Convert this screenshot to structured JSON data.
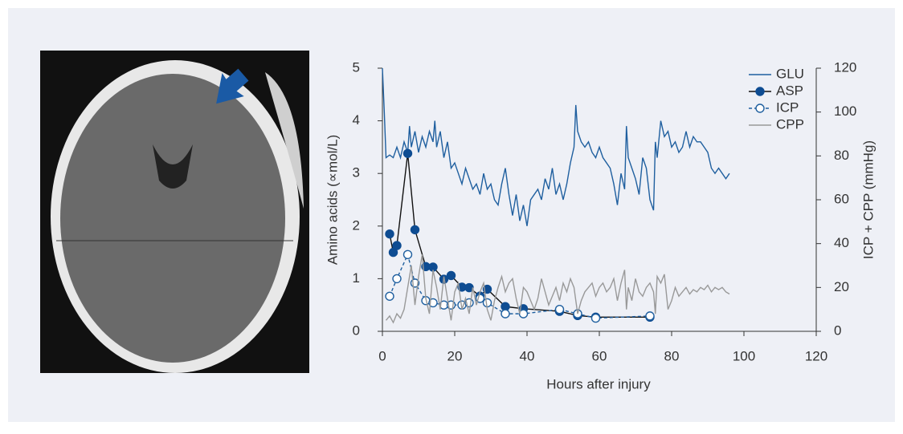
{
  "chart_data": {
    "type": "line",
    "xlabel": "Hours after injury",
    "ylabel": "Amino acids (∝mol/L)",
    "y2label": "ICP + CPP (mmHg)",
    "xlim": [
      0,
      120
    ],
    "xticks": [
      0,
      20,
      40,
      60,
      80,
      100,
      120
    ],
    "ylim": [
      0,
      5
    ],
    "yticks": [
      0,
      1,
      2,
      3,
      4,
      5
    ],
    "y2lim": [
      0,
      120
    ],
    "y2ticks": [
      0,
      20,
      40,
      60,
      80,
      100,
      120
    ],
    "legend": "upper right",
    "series": [
      {
        "name": "GLU",
        "color": "#1f5f9f",
        "marker": "none",
        "dash": false,
        "x": [
          0,
          0.5,
          1,
          2,
          3,
          4,
          5,
          6,
          7,
          7.5,
          8,
          9,
          10,
          11,
          12,
          13,
          14,
          14.5,
          15,
          16,
          17,
          18,
          19,
          20,
          21,
          22,
          23,
          24,
          25,
          26,
          27,
          28,
          29,
          30,
          31,
          32,
          33,
          34,
          35,
          36,
          37,
          38,
          39,
          40,
          41,
          42,
          43,
          44,
          45,
          46,
          47,
          48,
          49,
          50,
          51,
          52,
          53,
          53.5,
          54,
          55,
          56,
          57,
          58,
          59,
          60,
          61,
          62,
          63,
          64,
          65,
          66,
          67,
          67.5,
          68,
          69,
          70,
          71,
          72,
          73,
          74,
          75,
          75.5,
          76,
          77,
          78,
          79,
          80,
          81,
          82,
          83,
          84,
          85,
          86,
          87,
          88,
          89,
          90,
          91,
          92,
          93,
          94,
          95,
          96
        ],
        "values": [
          5.0,
          4.2,
          3.3,
          3.35,
          3.3,
          3.5,
          3.3,
          3.6,
          3.4,
          3.9,
          3.5,
          3.8,
          3.4,
          3.7,
          3.5,
          3.8,
          3.6,
          4.0,
          3.5,
          3.8,
          3.3,
          3.6,
          3.1,
          3.2,
          3.0,
          2.8,
          3.1,
          2.9,
          2.7,
          2.8,
          2.6,
          3.0,
          2.7,
          2.8,
          2.5,
          2.4,
          2.8,
          3.1,
          2.6,
          2.2,
          2.6,
          2.1,
          2.4,
          2.0,
          2.5,
          2.6,
          2.7,
          2.5,
          2.9,
          2.7,
          3.1,
          2.6,
          2.8,
          2.5,
          2.8,
          3.2,
          3.5,
          4.3,
          3.8,
          3.6,
          3.5,
          3.6,
          3.4,
          3.3,
          3.5,
          3.3,
          3.2,
          3.1,
          2.8,
          2.4,
          3.0,
          2.7,
          3.9,
          3.3,
          3.1,
          2.9,
          2.6,
          3.3,
          3.1,
          2.5,
          2.3,
          3.6,
          3.3,
          4.0,
          3.7,
          3.8,
          3.5,
          3.6,
          3.4,
          3.5,
          3.8,
          3.5,
          3.7,
          3.6,
          3.6,
          3.5,
          3.4,
          3.1,
          3.0,
          3.1,
          3.0,
          2.9,
          3.0
        ]
      },
      {
        "name": "ASP",
        "color": "#0e4c92",
        "line_color": "#111111",
        "marker": "filled",
        "dash": false,
        "x": [
          2,
          3,
          4,
          7,
          9,
          12,
          14,
          17,
          19,
          22,
          24,
          27,
          29,
          34,
          39,
          49,
          54,
          59,
          74
        ],
        "values": [
          1.85,
          1.5,
          1.63,
          3.38,
          1.93,
          1.23,
          1.22,
          0.99,
          1.06,
          0.84,
          0.83,
          0.67,
          0.8,
          0.47,
          0.43,
          0.38,
          0.3,
          0.27,
          0.27
        ]
      },
      {
        "name": "ICP",
        "color": "#1f5f9f",
        "marker": "open",
        "dash": true,
        "axis": "y2",
        "x": [
          2,
          4,
          7,
          9,
          12,
          14,
          17,
          19,
          22,
          24,
          27,
          29,
          34,
          39,
          49,
          54,
          59,
          74
        ],
        "values": [
          16,
          24,
          35,
          22,
          14,
          13,
          12,
          12,
          12,
          13,
          15,
          13,
          8,
          8,
          10,
          8,
          6,
          7
        ]
      },
      {
        "name": "CPP",
        "color": "#999999",
        "marker": "none",
        "dash": false,
        "axis": "y2",
        "x": [
          1,
          2,
          3,
          4,
          5,
          6,
          7,
          8,
          9,
          10,
          11,
          12,
          13,
          14,
          15,
          16,
          17,
          18,
          19,
          20,
          21,
          22,
          23,
          24,
          25,
          26,
          27,
          28,
          29,
          30,
          31,
          32,
          33,
          34,
          35,
          36,
          37,
          38,
          39,
          40,
          41,
          42,
          43,
          44,
          45,
          46,
          47,
          48,
          49,
          50,
          51,
          52,
          53,
          54,
          55,
          56,
          57,
          58,
          59,
          60,
          61,
          62,
          63,
          64,
          65,
          66,
          67,
          67.5,
          68,
          69,
          70,
          71,
          72,
          73,
          74,
          75,
          75.5,
          76,
          77,
          78,
          79,
          80,
          81,
          82,
          83,
          84,
          85,
          86,
          87,
          88,
          89,
          90,
          91,
          92,
          93,
          94,
          95,
          96
        ],
        "values": [
          5,
          7,
          4,
          8,
          6,
          10,
          20,
          30,
          12,
          25,
          35,
          15,
          8,
          28,
          20,
          10,
          25,
          15,
          5,
          18,
          22,
          10,
          15,
          8,
          20,
          12,
          18,
          22,
          10,
          5,
          14,
          20,
          25,
          18,
          22,
          24,
          15,
          8,
          20,
          18,
          14,
          10,
          15,
          24,
          18,
          12,
          16,
          20,
          14,
          22,
          18,
          24,
          20,
          8,
          14,
          18,
          20,
          22,
          16,
          20,
          22,
          18,
          20,
          24,
          14,
          22,
          28,
          10,
          20,
          14,
          24,
          18,
          16,
          20,
          22,
          18,
          8,
          25,
          22,
          26,
          10,
          14,
          20,
          16,
          18,
          20,
          17,
          19,
          18,
          20,
          19,
          21,
          18,
          20,
          19,
          20,
          18,
          17
        ]
      }
    ]
  }
}
